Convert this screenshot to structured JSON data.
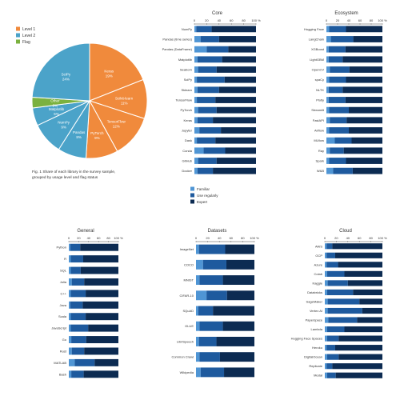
{
  "colors": {
    "orange": "#f08a3c",
    "teal": "#4ba3c9",
    "green": "#7bb13f",
    "bar_light": "#4f95d4",
    "bar_mid": "#1e5a9e",
    "bar_dark": "#0c2b52"
  },
  "chart_data": [
    {
      "type": "pie",
      "legend": [
        "Level 1",
        "Level 2",
        "Flag"
      ],
      "slices": [
        {
          "label": "Keras",
          "value": 19,
          "color": "orange"
        },
        {
          "label": "Scikit-learn",
          "value": 11,
          "color": "orange"
        },
        {
          "label": "TensorFlow",
          "value": 12,
          "color": "orange"
        },
        {
          "label": "PyTorch",
          "value": 9,
          "color": "orange"
        },
        {
          "label": "Pandas",
          "value": 8,
          "color": "teal"
        },
        {
          "label": "NumPy",
          "value": 9,
          "color": "teal"
        },
        {
          "label": "Matplotlib",
          "value": 5,
          "color": "teal"
        },
        {
          "label": "Other",
          "value": 3,
          "color": "green"
        },
        {
          "label": "SciPy",
          "value": 24,
          "color": "teal"
        }
      ],
      "caption": [
        "Fig. 1 Share of each library in the survey sample,",
        "grouped by usage level and flag status"
      ]
    },
    {
      "type": "bar",
      "title": "Core",
      "stacked": true,
      "xticks": [
        "0",
        "20",
        "40",
        "60",
        "80",
        "100 %"
      ],
      "categories": [
        "NumPy",
        "Pandas (time series)",
        "Pandas (DataFrame)",
        "Matplotlib",
        "Seaborn",
        "SciPy",
        "Sklearn",
        "TensorFlow",
        "PyTorch",
        "Keras",
        "Jupyter",
        "Dask",
        "Conda",
        "GitHub",
        "Docker"
      ],
      "series": [
        {
          "name": "Familiar",
          "color": "bar_light",
          "values": [
            3,
            10,
            20,
            5,
            6,
            4,
            5,
            4,
            6,
            5,
            8,
            4,
            15,
            6,
            5
          ]
        },
        {
          "name": "Use regularly",
          "color": "bar_mid",
          "values": [
            25,
            30,
            35,
            40,
            30,
            45,
            35,
            30,
            30,
            25,
            35,
            30,
            35,
            30,
            25
          ]
        },
        {
          "name": "Expert",
          "color": "bar_dark",
          "values": [
            72,
            60,
            45,
            55,
            64,
            51,
            60,
            66,
            64,
            70,
            57,
            66,
            50,
            64,
            70
          ]
        }
      ]
    },
    {
      "type": "bar",
      "title": "Ecosystem",
      "stacked": true,
      "xticks": [
        "0",
        "20",
        "40",
        "60",
        "80",
        "100 %"
      ],
      "categories": [
        "Hugging Face",
        "LangChain",
        "XGBoost",
        "LightGBM",
        "OpenCV",
        "spaCy",
        "NLTK",
        "Plotly",
        "Streamlit",
        "FastAPI",
        "Airflow",
        "MLflow",
        "Ray",
        "Spark",
        "W&B"
      ],
      "series": [
        {
          "name": "Familiar",
          "values": [
            5,
            8,
            4,
            4,
            6,
            5,
            4,
            4,
            5,
            6,
            5,
            15,
            6,
            5,
            12
          ]
        },
        {
          "name": "Use regularly",
          "values": [
            30,
            40,
            30,
            25,
            35,
            30,
            25,
            30,
            35,
            30,
            35,
            30,
            25,
            30,
            35
          ]
        },
        {
          "name": "Expert",
          "values": [
            65,
            52,
            66,
            71,
            59,
            65,
            71,
            66,
            60,
            64,
            60,
            55,
            69,
            65,
            53
          ]
        }
      ]
    },
    {
      "type": "bar",
      "title": "General",
      "stacked": true,
      "xticks": [
        "0",
        "20",
        "40",
        "60",
        "80",
        "100 %"
      ],
      "categories": [
        "Python",
        "R",
        "SQL",
        "Julia",
        "C++",
        "Java",
        "Scala",
        "JavaScript",
        "Go",
        "Rust",
        "MATLAB",
        "Bash"
      ],
      "series": [
        {
          "name": "Familiar",
          "values": [
            3,
            4,
            4,
            6,
            4,
            3,
            4,
            4,
            5,
            6,
            12,
            5
          ]
        },
        {
          "name": "Use regularly",
          "values": [
            20,
            25,
            20,
            25,
            30,
            25,
            30,
            35,
            30,
            25,
            40,
            25
          ]
        },
        {
          "name": "Expert",
          "values": [
            77,
            71,
            76,
            69,
            66,
            72,
            66,
            61,
            65,
            69,
            48,
            70
          ]
        }
      ]
    },
    {
      "type": "bar",
      "title": "Datasets",
      "stacked": true,
      "xticks": [
        "0",
        "20",
        "40",
        "60",
        "80",
        "100 %"
      ],
      "categories": [
        "ImageNet",
        "COCO",
        "MNIST",
        "CIFAR-10",
        "SQuAD",
        "GLUE",
        "LibriSpeech",
        "Common Crawl",
        "Wikipedia"
      ],
      "series": [
        {
          "name": "Familiar",
          "values": [
            5,
            12,
            6,
            18,
            4,
            6,
            5,
            6,
            8
          ]
        },
        {
          "name": "Use regularly",
          "values": [
            45,
            40,
            40,
            35,
            25,
            40,
            30,
            35,
            40
          ]
        },
        {
          "name": "Expert",
          "values": [
            50,
            48,
            54,
            47,
            71,
            54,
            65,
            59,
            52
          ]
        }
      ]
    },
    {
      "type": "bar",
      "title": "Cloud",
      "stacked": true,
      "xticks": [
        "0",
        "20",
        "40",
        "60",
        "80",
        "100 %"
      ],
      "categories": [
        "AWS",
        "GCP",
        "Azure",
        "Colab",
        "Kaggle",
        "Databricks",
        "SageMaker",
        "Vertex AI",
        "Paperspace",
        "Lambda",
        "Hugging Face Spaces",
        "Heroku",
        "DigitalOcean",
        "Replicate",
        "Modal"
      ],
      "series": [
        {
          "name": "Familiar",
          "values": [
            3,
            3,
            3,
            4,
            5,
            4,
            5,
            5,
            6,
            4,
            4,
            3,
            4,
            3,
            4
          ]
        },
        {
          "name": "Use regularly",
          "values": [
            10,
            15,
            20,
            30,
            35,
            45,
            55,
            60,
            50,
            30,
            20,
            15,
            20,
            10,
            15
          ]
        },
        {
          "name": "Expert",
          "values": [
            87,
            82,
            77,
            66,
            60,
            51,
            40,
            35,
            44,
            66,
            76,
            82,
            76,
            87,
            81
          ]
        }
      ]
    }
  ],
  "legend_center": [
    "Familiar",
    "Use regularly",
    "Expert"
  ]
}
